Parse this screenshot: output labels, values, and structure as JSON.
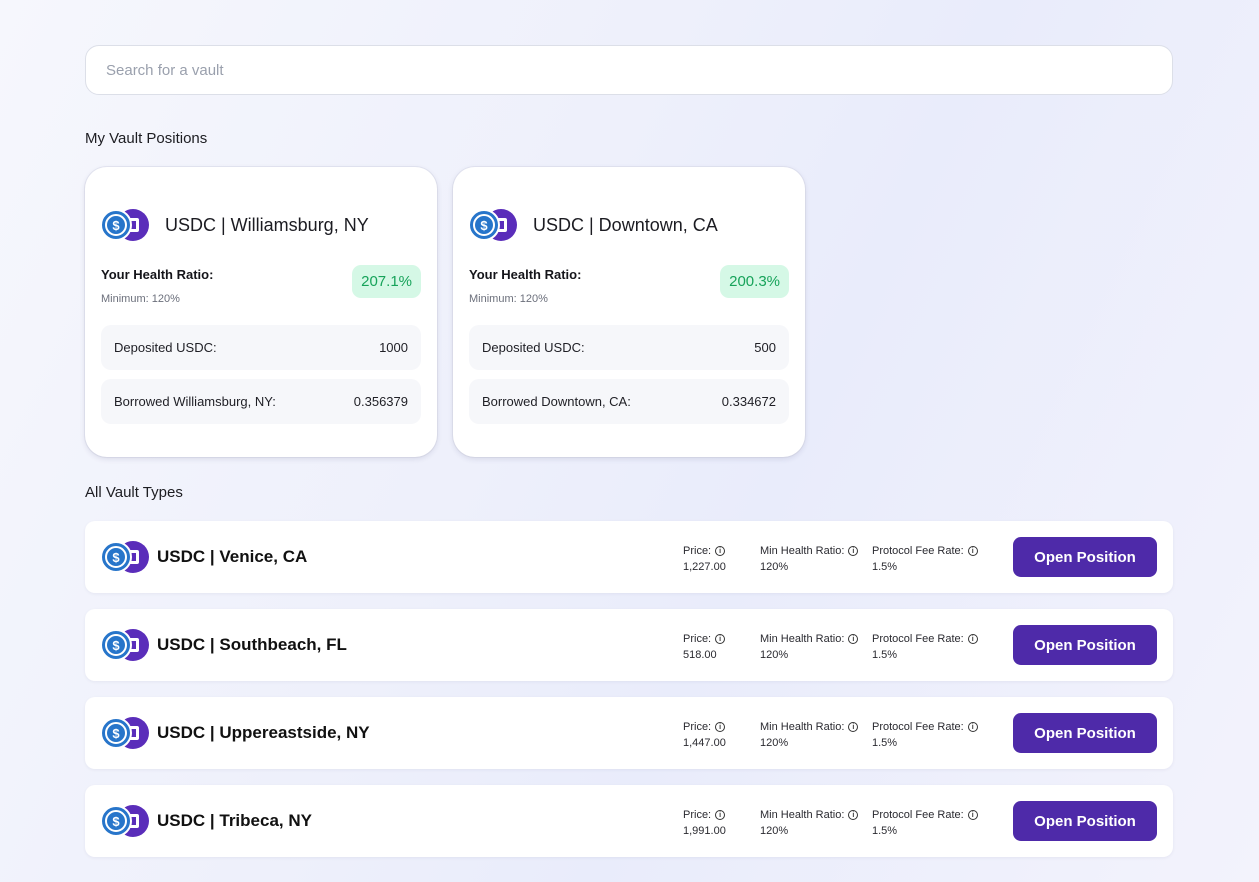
{
  "search": {
    "placeholder": "Search for a vault",
    "value": ""
  },
  "my_positions": {
    "title": "My Vault Positions",
    "cards": [
      {
        "name": "USDC | Williamsburg, NY",
        "health_label": "Your Health Ratio:",
        "health_min": "Minimum: 120%",
        "health_value": "207.1%",
        "deposited_label": "Deposited USDC:",
        "deposited_value": "1000",
        "borrowed_label": "Borrowed Williamsburg, NY:",
        "borrowed_value": "0.356379"
      },
      {
        "name": "USDC | Downtown, CA",
        "health_label": "Your Health Ratio:",
        "health_min": "Minimum: 120%",
        "health_value": "200.3%",
        "deposited_label": "Deposited USDC:",
        "deposited_value": "500",
        "borrowed_label": "Borrowed Downtown, CA:",
        "borrowed_value": "0.334672"
      }
    ]
  },
  "all_vaults": {
    "title": "All Vault Types",
    "price_label": "Price:",
    "min_health_label": "Min Health Ratio:",
    "fee_label": "Protocol Fee Rate:",
    "button_label": "Open Position",
    "rows": [
      {
        "name": "USDC | Venice, CA",
        "price": "1,227.00",
        "min_health": "120%",
        "fee": "1.5%"
      },
      {
        "name": "USDC | Southbeach, FL",
        "price": "518.00",
        "min_health": "120%",
        "fee": "1.5%"
      },
      {
        "name": "USDC | Uppereastside, NY",
        "price": "1,447.00",
        "min_health": "120%",
        "fee": "1.5%"
      },
      {
        "name": "USDC | Tribeca, NY",
        "price": "1,991.00",
        "min_health": "120%",
        "fee": "1.5%"
      }
    ]
  },
  "icons": {
    "usdc": "usdc-coin-icon",
    "vault": "vault-token-icon",
    "info": "info-icon",
    "usdc_glyph": "$",
    "info_glyph": "i"
  },
  "colors": {
    "accent": "#4e2aa9",
    "usdc": "#2775ca",
    "health_bg": "#d5f8e6",
    "health_text": "#17a35a"
  }
}
